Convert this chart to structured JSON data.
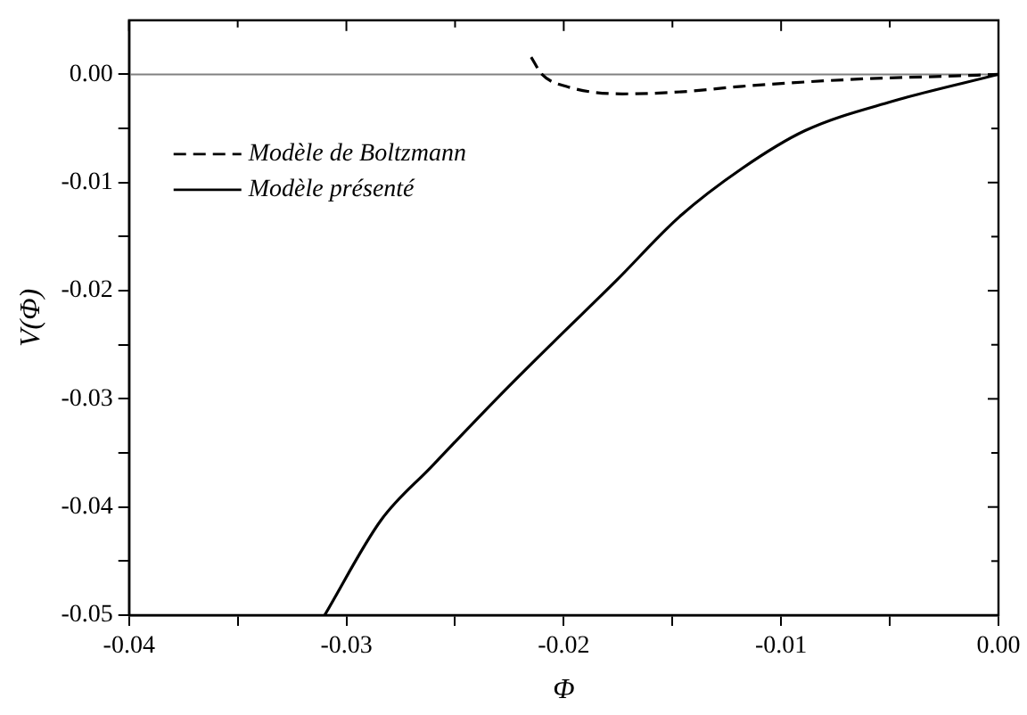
{
  "chart_data": {
    "type": "line",
    "xlabel": "Φ",
    "ylabel": "V(Φ)",
    "legend": "top left",
    "xlim": [
      -0.04,
      0.0
    ],
    "ylim": [
      -0.05,
      0.005
    ],
    "xticks": [
      -0.04,
      {
        "value": -0.035,
        "label": null
      },
      -0.03,
      {
        "value": -0.025,
        "label": null
      },
      -0.02,
      {
        "value": -0.015,
        "label": null
      },
      -0.01,
      {
        "value": -0.005,
        "label": null
      },
      "0.00"
    ],
    "yticks": [
      -0.05,
      {
        "value": -0.045,
        "label": null
      },
      -0.04,
      {
        "value": -0.035,
        "label": null
      },
      -0.03,
      {
        "value": -0.025,
        "label": null
      },
      -0.02,
      {
        "value": -0.015,
        "label": null
      },
      -0.01,
      {
        "value": -0.005,
        "label": null
      },
      {
        "value": 0,
        "label": "0.00"
      }
    ],
    "ref_lines": [
      {
        "axis": "y",
        "value": 0,
        "color": "#808080",
        "line_style": "solid"
      }
    ],
    "series": [
      {
        "name": "Modèle de Boltzmann",
        "color": "#000000",
        "line_style": "dashed",
        "x": [
          -0.0215,
          -0.021,
          -0.0199,
          -0.0173,
          -0.0145,
          -0.0118,
          -0.0061,
          -0.0029,
          0
        ],
        "values": [
          0.0016,
          0,
          -0.0011,
          -0.0018,
          -0.0016,
          -0.0011,
          -0.0004,
          -0.0002,
          0
        ]
      },
      {
        "name": "Modèle présenté",
        "color": "#000000",
        "line_style": "solid",
        "x": [
          -0.031,
          -0.0284,
          -0.0261,
          -0.0228,
          -0.0205,
          -0.0176,
          -0.0147,
          -0.0118,
          -0.0089,
          -0.0049,
          0
        ],
        "values": [
          -0.05,
          -0.0412,
          -0.0363,
          -0.0294,
          -0.0248,
          -0.0191,
          -0.0132,
          -0.0087,
          -0.0052,
          -0.0025,
          0
        ]
      }
    ],
    "marker": "none"
  }
}
